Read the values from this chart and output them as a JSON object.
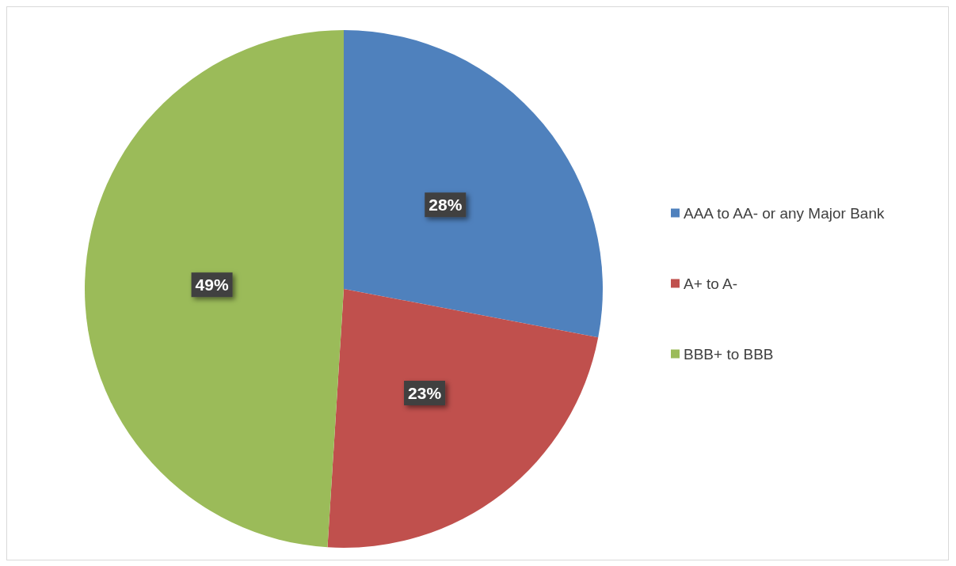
{
  "chart_data": {
    "type": "pie",
    "categories": [
      "AAA to AA- or any Major Bank",
      "A+ to A-",
      "BBB+ to BBB"
    ],
    "values": [
      28,
      23,
      49
    ],
    "colors": [
      "#4f81bd",
      "#c0504d",
      "#9bbb59"
    ],
    "value_labels": [
      "28%",
      "23%",
      "49%"
    ],
    "legend": "right"
  }
}
